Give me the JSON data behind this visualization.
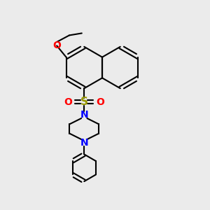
{
  "bg_color": "#ebebeb",
  "bond_color": "#000000",
  "bond_width": 1.5,
  "S_color": "#999900",
  "O_color": "#ff0000",
  "N_color": "#0000ff",
  "figsize": [
    3.0,
    3.0
  ],
  "dpi": 100,
  "xlim": [
    0,
    10
  ],
  "ylim": [
    0,
    10
  ]
}
